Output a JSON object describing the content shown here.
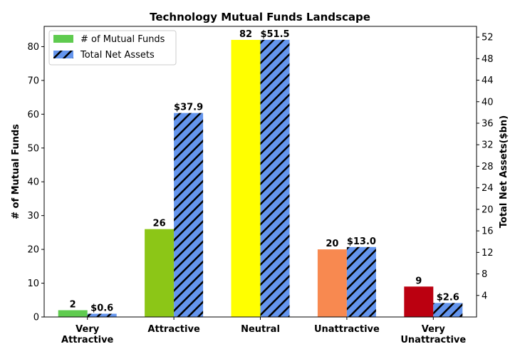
{
  "chart_data": {
    "type": "bar",
    "title": "Technology Mutual Funds Landscape",
    "categories": [
      "Very\nAttractive",
      "Attractive",
      "Neutral",
      "Unattractive",
      "Very\nUnattractive"
    ],
    "ylabel": "# of Mutual Funds",
    "y2label": "Total Net Assets($bn)",
    "ylim": [
      0,
      86
    ],
    "y2lim": [
      0,
      54
    ],
    "yticks": [
      0,
      10,
      20,
      30,
      40,
      50,
      60,
      70,
      80
    ],
    "y2ticks": [
      4,
      8,
      12,
      16,
      20,
      24,
      28,
      32,
      36,
      40,
      44,
      48,
      52
    ],
    "legend_position": "top-left",
    "series": [
      {
        "name": "# of Mutual Funds",
        "axis": "left",
        "values": [
          2,
          26,
          82,
          20,
          9
        ],
        "labels": [
          "2",
          "26",
          "82",
          "20",
          "9"
        ],
        "colors": [
          "#5fcb4f",
          "#8cc617",
          "#ffff00",
          "#f88950",
          "#bb0010"
        ],
        "legend_color": "#5fcb4f"
      },
      {
        "name": "Total Net Assets",
        "axis": "right",
        "values": [
          0.6,
          37.9,
          51.5,
          13.0,
          2.6
        ],
        "labels": [
          "$0.6",
          "$37.9",
          "$51.5",
          "$13.0",
          "$2.6"
        ],
        "color": "#6495ed",
        "hatch": "diagonal"
      }
    ]
  }
}
